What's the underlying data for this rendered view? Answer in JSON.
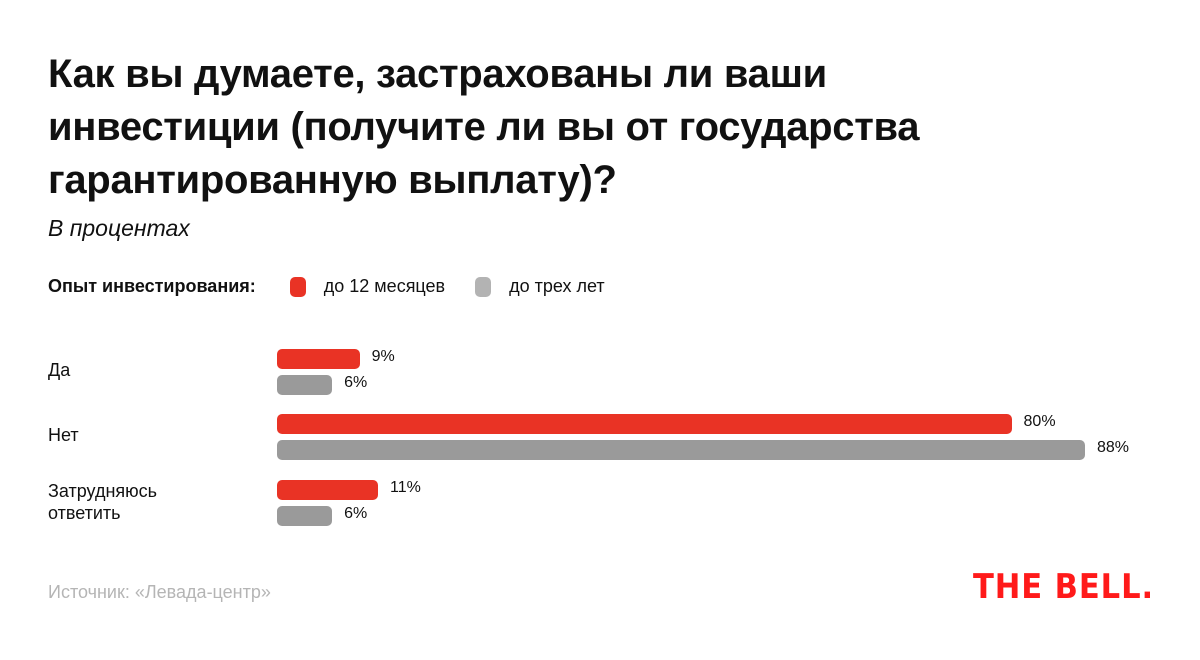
{
  "chart_data": {
    "type": "bar",
    "orientation": "horizontal",
    "title": "Как вы думаете, застрахованы ли ваши инвестиции (получите ли вы от государства гарантированную выплату)?",
    "subtitle": "В процентах",
    "legend_title": "Опыт инвестирования:",
    "legend_placement": "top-left",
    "categories": [
      "Да",
      "Нет",
      "Затрудняюсь ответить"
    ],
    "series": [
      {
        "name": "до 12 месяцев",
        "color": "#e93325",
        "values": [
          9,
          80,
          11
        ],
        "labels": [
          "9%",
          "80%",
          "11%"
        ]
      },
      {
        "name": "до трех лет",
        "color": "#9a9a9a",
        "values": [
          6,
          88,
          6
        ],
        "labels": [
          "6%",
          "88%",
          "6%"
        ]
      }
    ],
    "xlim": [
      0,
      88
    ],
    "grid": false
  },
  "legend_swatch_gray": "#b3b3b3",
  "source": "Источник: «Левада-центр»",
  "logo": "THE BELL."
}
